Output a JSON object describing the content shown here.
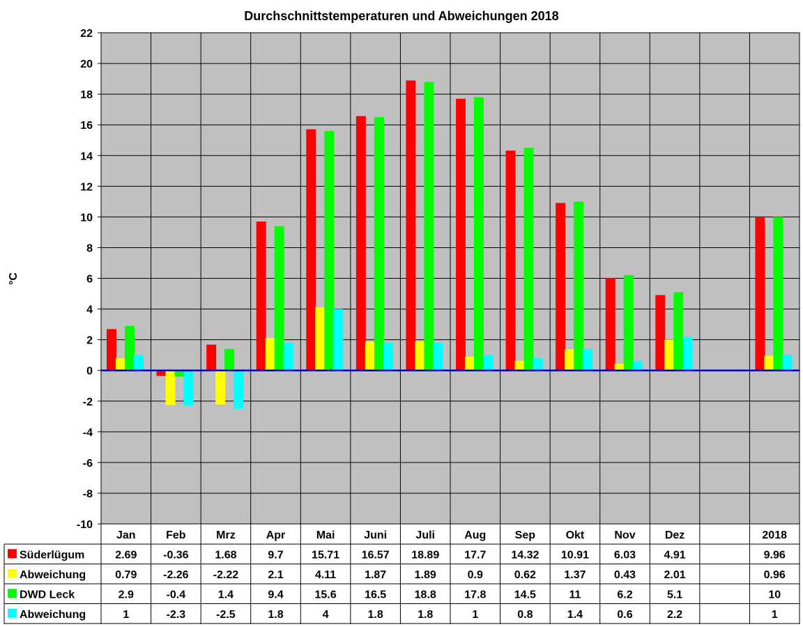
{
  "chart_data": {
    "type": "bar",
    "title": "Durchschnittstemperaturen und Abweichungen 2018",
    "ylabel": "°C",
    "xlabel": "",
    "ylim": [
      -10,
      22
    ],
    "ytick_step": 2,
    "grid": true,
    "plot_background": "#c0c0c0",
    "zero_line_color": "#0000cc",
    "legend_placement": "data-table-below",
    "categories": [
      "Jan",
      "Feb",
      "Mrz",
      "Apr",
      "Mai",
      "Juni",
      "Juli",
      "Aug",
      "Sep",
      "Okt",
      "Nov",
      "Dez",
      "",
      "2018"
    ],
    "series": [
      {
        "name": "Süderlügum",
        "color": "#ff0000",
        "values": [
          2.69,
          -0.36,
          1.68,
          9.7,
          15.71,
          16.57,
          18.89,
          17.7,
          14.32,
          10.91,
          6.03,
          4.91,
          null,
          9.96
        ],
        "labels": [
          "2.69",
          "-0.36",
          "1.68",
          "9.7",
          "15.71",
          "16.57",
          "18.89",
          "17.7",
          "14.32",
          "10.91",
          "6.03",
          "4.91",
          "",
          "9.96"
        ]
      },
      {
        "name": "Abweichung",
        "color": "#ffff00",
        "values": [
          0.79,
          -2.26,
          -2.22,
          2.1,
          4.11,
          1.87,
          1.89,
          0.9,
          0.62,
          1.37,
          0.43,
          2.01,
          null,
          0.96
        ],
        "labels": [
          "0.79",
          "-2.26",
          "-2.22",
          "2.1",
          "4.11",
          "1.87",
          "1.89",
          "0.9",
          "0.62",
          "1.37",
          "0.43",
          "2.01",
          "",
          "0.96"
        ]
      },
      {
        "name": "DWD Leck",
        "color": "#00ff00",
        "values": [
          2.9,
          -0.4,
          1.4,
          9.4,
          15.6,
          16.5,
          18.8,
          17.8,
          14.5,
          11,
          6.2,
          5.1,
          null,
          10
        ],
        "labels": [
          "2.9",
          "-0.4",
          "1.4",
          "9.4",
          "15.6",
          "16.5",
          "18.8",
          "17.8",
          "14.5",
          "11",
          "6.2",
          "5.1",
          "",
          "10"
        ]
      },
      {
        "name": "Abweichung",
        "color": "#00ffff",
        "values": [
          1,
          -2.3,
          -2.5,
          1.8,
          4,
          1.8,
          1.8,
          1,
          0.8,
          1.4,
          0.6,
          2.2,
          null,
          1
        ],
        "labels": [
          "1",
          "-2.3",
          "-2.5",
          "1.8",
          "4",
          "1.8",
          "1.8",
          "1",
          "0.8",
          "1.4",
          "0.6",
          "2.2",
          "",
          "1"
        ]
      }
    ]
  }
}
